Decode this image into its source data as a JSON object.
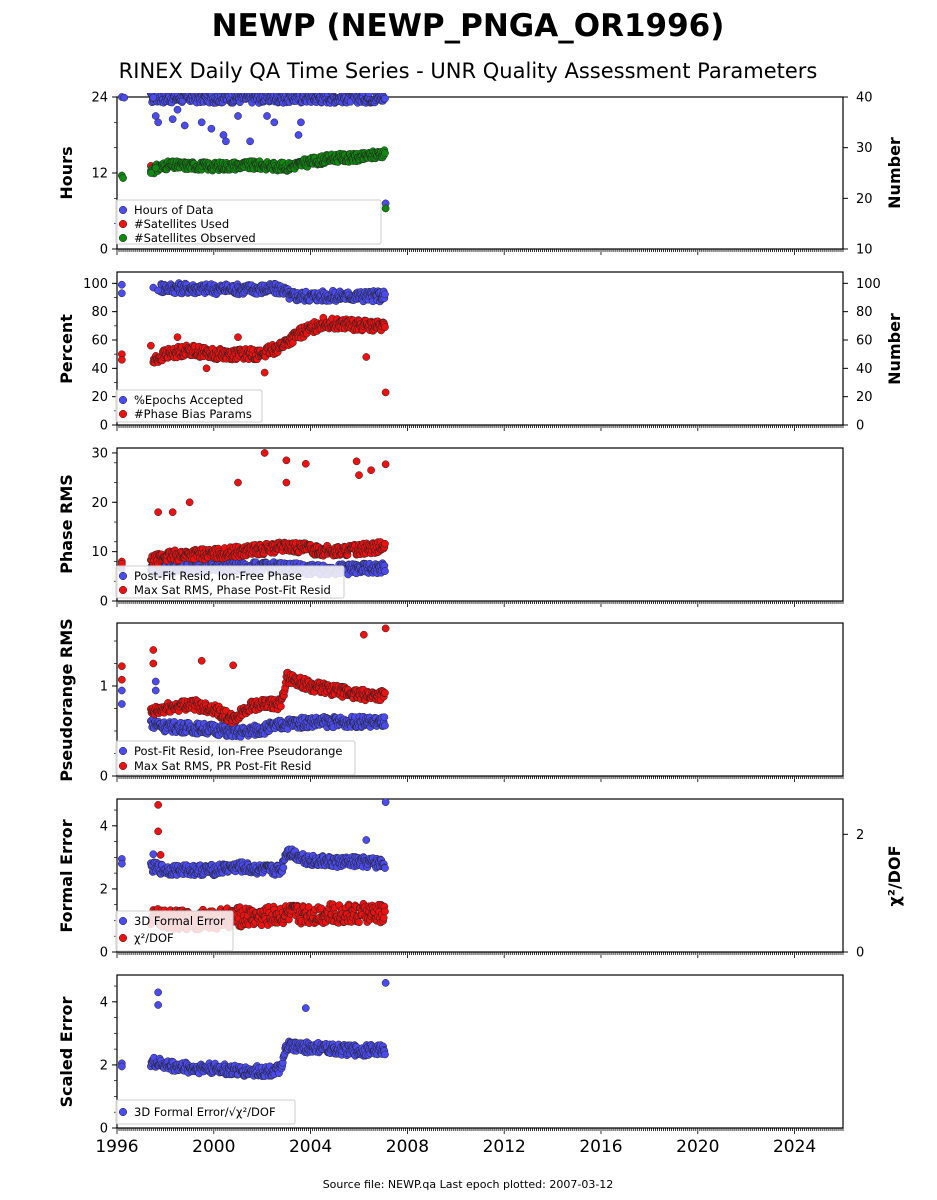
{
  "title": "NEWP (NEWP_PNGA_OR1996)",
  "subtitle": "RINEX Daily QA Time Series - UNR Quality Assessment Parameters",
  "footer": "Source file: NEWP.qa Last epoch plotted: 2007-03-12",
  "colors": {
    "blue": "#4b4bf0",
    "red": "#ee1111",
    "green": "#118811"
  },
  "chart_data": [
    {
      "type": "scatter",
      "ylabel": "Hours",
      "ylabel_right": "Number",
      "ylim": [
        0,
        24
      ],
      "yticks": [
        "0",
        "12",
        "24"
      ],
      "ylim_right": [
        10,
        40
      ],
      "yticks_right": [
        "10",
        "20",
        "30",
        "40"
      ],
      "xlim": [
        1996,
        2026
      ],
      "series": [
        {
          "name": "Hours of Data",
          "color": "#4b4bf0",
          "axis": "left",
          "points": [
            [
              1996.2,
              24
            ],
            [
              1996.3,
              23.9
            ],
            [
              1997.5,
              23.9
            ],
            [
              1997.6,
              21
            ],
            [
              1997.7,
              20
            ],
            [
              1998.3,
              20.5
            ],
            [
              1998.5,
              22
            ],
            [
              1998.8,
              19.5
            ],
            [
              1999.5,
              20
            ],
            [
              1999.9,
              19
            ],
            [
              2000.4,
              18
            ],
            [
              2000.5,
              17
            ],
            [
              2001,
              21
            ],
            [
              2001.5,
              17
            ],
            [
              2002.2,
              21
            ],
            [
              2002.5,
              20
            ],
            [
              2003.5,
              18
            ],
            [
              2003.6,
              20
            ],
            [
              2007.1,
              7.2
            ]
          ],
          "trend": [
            [
              1997.4,
              23.9
            ],
            [
              2007.1,
              23.9
            ]
          ]
        },
        {
          "name": "#Satellites Used",
          "color": "#ee1111",
          "axis": "right",
          "points": [
            [
              1997.4,
              26.4
            ],
            [
              1997.6,
              26
            ]
          ]
        },
        {
          "name": "#Satellites Observed",
          "color": "#118811",
          "axis": "right",
          "points": [
            [
              1996.2,
              24.5
            ],
            [
              1996.25,
              24
            ],
            [
              1997.4,
              25
            ],
            [
              1997.6,
              26
            ],
            [
              2007.1,
              18
            ]
          ],
          "trend": [
            [
              1997.4,
              25.5
            ],
            [
              1998,
              26.5
            ],
            [
              1999,
              26.5
            ],
            [
              2000,
              26.3
            ],
            [
              2001,
              26.5
            ],
            [
              2002,
              26.5
            ],
            [
              2003,
              26.2
            ],
            [
              2004,
              27.2
            ],
            [
              2005,
              28
            ],
            [
              2006,
              28
            ],
            [
              2007.1,
              29
            ]
          ]
        }
      ]
    },
    {
      "type": "scatter",
      "ylabel": "Percent",
      "ylabel_right": "Number",
      "ylim": [
        0,
        108
      ],
      "yticks": [
        "0",
        "20",
        "40",
        "60",
        "80",
        "100"
      ],
      "ylim_right": [
        0,
        108
      ],
      "yticks_right": [
        "0",
        "20",
        "40",
        "60",
        "80",
        "100"
      ],
      "xlim": [
        1996,
        2026
      ],
      "series": [
        {
          "name": "%Epochs Accepted",
          "color": "#4b4bf0",
          "axis": "left",
          "points": [
            [
              1996.2,
              99
            ],
            [
              1996.2,
              93
            ],
            [
              1997.5,
              97
            ],
            [
              1997.7,
              95
            ]
          ],
          "trend": [
            [
              1997.8,
              97
            ],
            [
              2000,
              96
            ],
            [
              2002.8,
              96
            ],
            [
              2003.2,
              91
            ],
            [
              2005,
              91
            ],
            [
              2007.1,
              91
            ]
          ]
        },
        {
          "name": "#Phase Bias Params",
          "color": "#ee1111",
          "axis": "right",
          "points": [
            [
              1996.2,
              50
            ],
            [
              1996.2,
              46
            ],
            [
              1997.4,
              56
            ],
            [
              1998.5,
              62
            ],
            [
              1999.7,
              40
            ],
            [
              2001,
              62
            ],
            [
              2002.1,
              37
            ],
            [
              2006.3,
              48
            ],
            [
              2007.1,
              23
            ]
          ],
          "trend": [
            [
              1997.5,
              45
            ],
            [
              1998,
              50
            ],
            [
              1999,
              53
            ],
            [
              2000,
              50
            ],
            [
              2001,
              50
            ],
            [
              2002,
              50
            ],
            [
              2002.8,
              56
            ],
            [
              2003.5,
              64
            ],
            [
              2004.5,
              72
            ],
            [
              2005.5,
              71
            ],
            [
              2007.1,
              69
            ]
          ]
        }
      ]
    },
    {
      "type": "scatter",
      "ylabel": "Phase RMS",
      "ylim": [
        0,
        31
      ],
      "yticks": [
        "0",
        "10",
        "20",
        "30"
      ],
      "xlim": [
        1996,
        2026
      ],
      "series": [
        {
          "name": "Post-Fit Resid, Ion-Free Phase",
          "color": "#4b4bf0",
          "points": [
            [
              1996.2,
              6.5
            ],
            [
              1997.5,
              6.5
            ]
          ],
          "trend": [
            [
              1997.4,
              6.5
            ],
            [
              2000,
              6.8
            ],
            [
              2003,
              6.8
            ],
            [
              2004,
              6.3
            ],
            [
              2007.1,
              6.6
            ]
          ]
        },
        {
          "name": "Max Sat RMS, Phase Post-Fit Resid",
          "color": "#ee1111",
          "points": [
            [
              1996.2,
              8
            ],
            [
              1996.2,
              7.5
            ],
            [
              1997.7,
              18
            ],
            [
              1998.3,
              18
            ],
            [
              1999,
              20
            ],
            [
              2001,
              24
            ],
            [
              2002.1,
              30
            ],
            [
              2003,
              28.5
            ],
            [
              2003,
              24
            ],
            [
              2003.8,
              27.8
            ],
            [
              2005.9,
              28.3
            ],
            [
              2006,
              25.5
            ],
            [
              2006.5,
              26.5
            ],
            [
              2007.1,
              27.7
            ]
          ],
          "trend": [
            [
              1997.4,
              8
            ],
            [
              1998,
              9
            ],
            [
              1999,
              9.5
            ],
            [
              2000,
              9.5
            ],
            [
              2001,
              10
            ],
            [
              2002,
              10.5
            ],
            [
              2003,
              11
            ],
            [
              2004,
              10.5
            ],
            [
              2005,
              10
            ],
            [
              2006,
              10.5
            ],
            [
              2007.1,
              11
            ]
          ]
        }
      ]
    },
    {
      "type": "scatter",
      "ylabel": "Pseudorange RMS",
      "ylim": [
        0,
        1.7
      ],
      "yticks": [
        "0",
        "1"
      ],
      "xlim": [
        1996,
        2026
      ],
      "series": [
        {
          "name": "Post-Fit Resid, Ion-Free Pseudorange",
          "color": "#4b4bf0",
          "points": [
            [
              1996.2,
              0.95
            ],
            [
              1996.2,
              0.8
            ],
            [
              1997.6,
              1.05
            ],
            [
              1997.6,
              0.95
            ]
          ],
          "trend": [
            [
              1997.4,
              0.6
            ],
            [
              1998,
              0.55
            ],
            [
              2000,
              0.52
            ],
            [
              2001,
              0.48
            ],
            [
              2002,
              0.52
            ],
            [
              2003,
              0.58
            ],
            [
              2004,
              0.6
            ],
            [
              2007.1,
              0.6
            ]
          ]
        },
        {
          "name": "Max Sat RMS, PR Post-Fit Resid",
          "color": "#ee1111",
          "points": [
            [
              1996.2,
              1.22
            ],
            [
              1996.2,
              1.07
            ],
            [
              1997.5,
              1.4
            ],
            [
              1997.5,
              1.25
            ],
            [
              1999.5,
              1.28
            ],
            [
              2000.8,
              1.23
            ],
            [
              2006.2,
              1.57
            ],
            [
              2007.1,
              1.64
            ]
          ],
          "trend": [
            [
              1997.4,
              0.7
            ],
            [
              1998,
              0.75
            ],
            [
              1999,
              0.8
            ],
            [
              2000,
              0.75
            ],
            [
              2000.8,
              0.62
            ],
            [
              2001.5,
              0.78
            ],
            [
              2002.8,
              0.8
            ],
            [
              2003,
              1.1
            ],
            [
              2004,
              1.0
            ],
            [
              2005,
              0.95
            ],
            [
              2006,
              0.9
            ],
            [
              2007.1,
              0.9
            ]
          ]
        }
      ]
    },
    {
      "type": "scatter",
      "ylabel": "Formal Error",
      "ylabel_right": "χ²/DOF",
      "ylim": [
        0,
        4.85
      ],
      "yticks": [
        "0",
        "2",
        "4"
      ],
      "ylim_right": [
        0,
        2.6
      ],
      "yticks_right": [
        "0",
        "2"
      ],
      "xlim": [
        1996,
        2026
      ],
      "series": [
        {
          "name": "3D Formal Error",
          "color": "#4b4bf0",
          "axis": "left",
          "points": [
            [
              1996.2,
              2.95
            ],
            [
              1996.2,
              2.8
            ],
            [
              1997.5,
              3.1
            ],
            [
              2006.3,
              3.55
            ],
            [
              2007.1,
              4.75
            ]
          ],
          "trend": [
            [
              1997.4,
              2.7
            ],
            [
              1998,
              2.6
            ],
            [
              2000,
              2.6
            ],
            [
              2001,
              2.7
            ],
            [
              2002,
              2.6
            ],
            [
              2002.8,
              2.6
            ],
            [
              2003,
              3.2
            ],
            [
              2004,
              2.9
            ],
            [
              2005,
              2.85
            ],
            [
              2006,
              2.85
            ],
            [
              2007.1,
              2.8
            ]
          ]
        },
        {
          "name": "χ²/DOF",
          "color": "#ee1111",
          "axis": "right",
          "points": [
            [
              1997.7,
              2.5
            ],
            [
              1997.7,
              2.05
            ],
            [
              1997.8,
              1.65
            ]
          ],
          "trend": [
            [
              1997.4,
              0.6
            ],
            [
              1998,
              0.55
            ],
            [
              2000,
              0.55
            ],
            [
              2001,
              0.6
            ],
            [
              2002,
              0.6
            ],
            [
              2003,
              0.65
            ],
            [
              2004,
              0.65
            ],
            [
              2005,
              0.65
            ],
            [
              2006,
              0.65
            ],
            [
              2007.1,
              0.65
            ]
          ]
        }
      ]
    },
    {
      "type": "scatter",
      "ylabel": "Scaled Error",
      "ylim": [
        0,
        4.85
      ],
      "yticks": [
        "0",
        "2",
        "4"
      ],
      "xlim": [
        1996,
        2026
      ],
      "xticks": [
        "1996",
        "2000",
        "2004",
        "2008",
        "2012",
        "2016",
        "2020",
        "2024"
      ],
      "series": [
        {
          "name": "3D Formal Error/√χ²/DOF",
          "color": "#4b4bf0",
          "points": [
            [
              1996.2,
              2.05
            ],
            [
              1996.2,
              1.95
            ],
            [
              1997.7,
              4.3
            ],
            [
              1997.7,
              3.9
            ],
            [
              2003.8,
              3.8
            ],
            [
              2007.1,
              4.6
            ]
          ],
          "trend": [
            [
              1997.4,
              2.1
            ],
            [
              1998,
              2.0
            ],
            [
              1999,
              1.9
            ],
            [
              2000,
              1.9
            ],
            [
              2001,
              1.8
            ],
            [
              2002,
              1.8
            ],
            [
              2002.8,
              1.85
            ],
            [
              2003,
              2.6
            ],
            [
              2004,
              2.55
            ],
            [
              2005,
              2.5
            ],
            [
              2006,
              2.45
            ],
            [
              2007.1,
              2.5
            ]
          ]
        }
      ]
    }
  ]
}
